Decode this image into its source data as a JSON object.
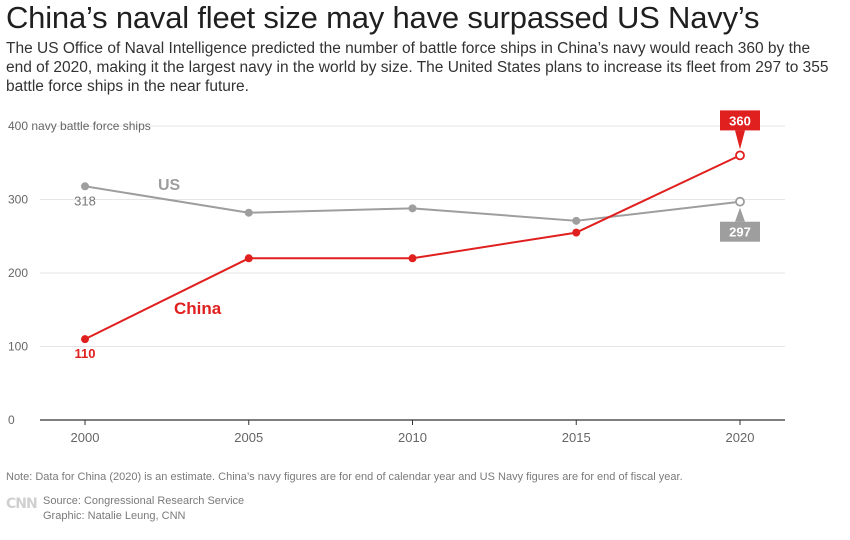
{
  "header": {
    "title": "China’s naval fleet size may have surpassed US Navy’s",
    "subtitle": "The US Office of Naval Intelligence predicted the number of battle force ships in China’s navy would reach 360 by the end of 2020, making it the largest navy in the world by size. The United States plans to increase its fleet from 297 to 355 battle force ships in the near future."
  },
  "footer": {
    "note": "Note: Data for China (2020) is an estimate. China’s navy figures are for end of calendar year and US Navy figures are for end of fiscal year.",
    "logo": "CNN",
    "source": "Source: Congressional Research Service",
    "credit": "Graphic: Natalie Leung, CNN"
  },
  "chart_data": {
    "type": "line",
    "x": [
      2000,
      2005,
      2010,
      2015,
      2020
    ],
    "xticks": [
      "2000",
      "2005",
      "2010",
      "2015",
      "2020"
    ],
    "ylim": [
      0,
      400
    ],
    "yticks": [
      "0",
      "100",
      "200",
      "300",
      "400 navy battle force ships"
    ],
    "ytick_values": [
      0,
      100,
      200,
      300,
      400
    ],
    "grid": true,
    "series": [
      {
        "name": "US",
        "color": "#9e9e9e",
        "values": [
          318,
          282,
          288,
          271,
          297
        ],
        "start_label": "318",
        "end_label": "297"
      },
      {
        "name": "China",
        "color": "#e0201f",
        "values": [
          110,
          220,
          220,
          255,
          360
        ],
        "start_label": "110",
        "end_label": "360",
        "estimate_last": true
      }
    ]
  }
}
